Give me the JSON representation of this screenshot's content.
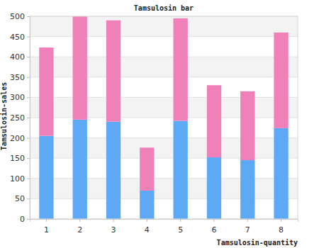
{
  "chart_data": {
    "type": "bar",
    "title": "Tamsulosin bar",
    "x_label": "Tamsulosin-quantity",
    "y_label": "Tamsulosin-sales",
    "categories": [
      "1",
      "2",
      "3",
      "4",
      "5",
      "6",
      "7",
      "8"
    ],
    "series": [
      {
        "color": "#5ea9f5",
        "values": [
          205,
          245,
          240,
          70,
          242,
          152,
          145,
          224
        ]
      },
      {
        "color": "#f080b8",
        "values": [
          218,
          255,
          250,
          106,
          253,
          178,
          170,
          236
        ]
      }
    ],
    "stacked": true,
    "ylim": [
      0,
      500
    ],
    "yticks": [
      0,
      50,
      100,
      150,
      200,
      250,
      300,
      350,
      400,
      450,
      500
    ],
    "grid": true
  }
}
